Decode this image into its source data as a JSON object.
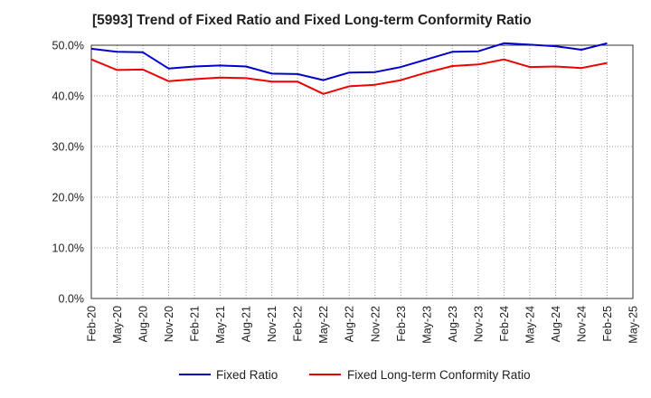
{
  "chart_data": {
    "type": "line",
    "title": "[5993]  Trend of Fixed Ratio and Fixed Long-term Conformity Ratio",
    "xlabel": "",
    "ylabel": "",
    "ylim": [
      0,
      50
    ],
    "y_ticks": [
      "0.0%",
      "10.0%",
      "20.0%",
      "30.0%",
      "40.0%",
      "50.0%"
    ],
    "x_tick_labels": [
      "Feb-20",
      "May-20",
      "Aug-20",
      "Nov-20",
      "Feb-21",
      "May-21",
      "Aug-21",
      "Nov-21",
      "Feb-22",
      "May-22",
      "Aug-22",
      "Nov-22",
      "Feb-23",
      "May-23",
      "Aug-23",
      "Nov-23",
      "Feb-24",
      "May-24",
      "Aug-24",
      "Nov-24",
      "Feb-25",
      "May-25"
    ],
    "categories": [
      "Feb-20",
      "May-20",
      "Aug-20",
      "Nov-20",
      "Feb-21",
      "May-21",
      "Aug-21",
      "Nov-21",
      "Feb-22",
      "May-22",
      "Aug-22",
      "Nov-22",
      "Feb-23",
      "May-23",
      "Aug-23",
      "Nov-23",
      "Feb-24",
      "May-24",
      "Aug-24",
      "Nov-24",
      "Feb-25"
    ],
    "grid": true,
    "legend_position": "bottom",
    "series": [
      {
        "name": "Fixed Ratio",
        "color": "#0000cc",
        "values": [
          49.3,
          48.7,
          48.6,
          45.4,
          45.8,
          46.0,
          45.8,
          44.4,
          44.3,
          43.1,
          44.6,
          44.7,
          45.7,
          47.2,
          48.7,
          48.8,
          50.4,
          50.1,
          49.8,
          49.1,
          50.4
        ]
      },
      {
        "name": "Fixed Long-term Conformity Ratio",
        "color": "#ee0000",
        "values": [
          47.2,
          45.1,
          45.2,
          42.9,
          43.3,
          43.6,
          43.5,
          42.8,
          42.8,
          40.4,
          41.9,
          42.2,
          43.1,
          44.6,
          45.9,
          46.2,
          47.2,
          45.7,
          45.8,
          45.5,
          46.5
        ]
      }
    ]
  }
}
